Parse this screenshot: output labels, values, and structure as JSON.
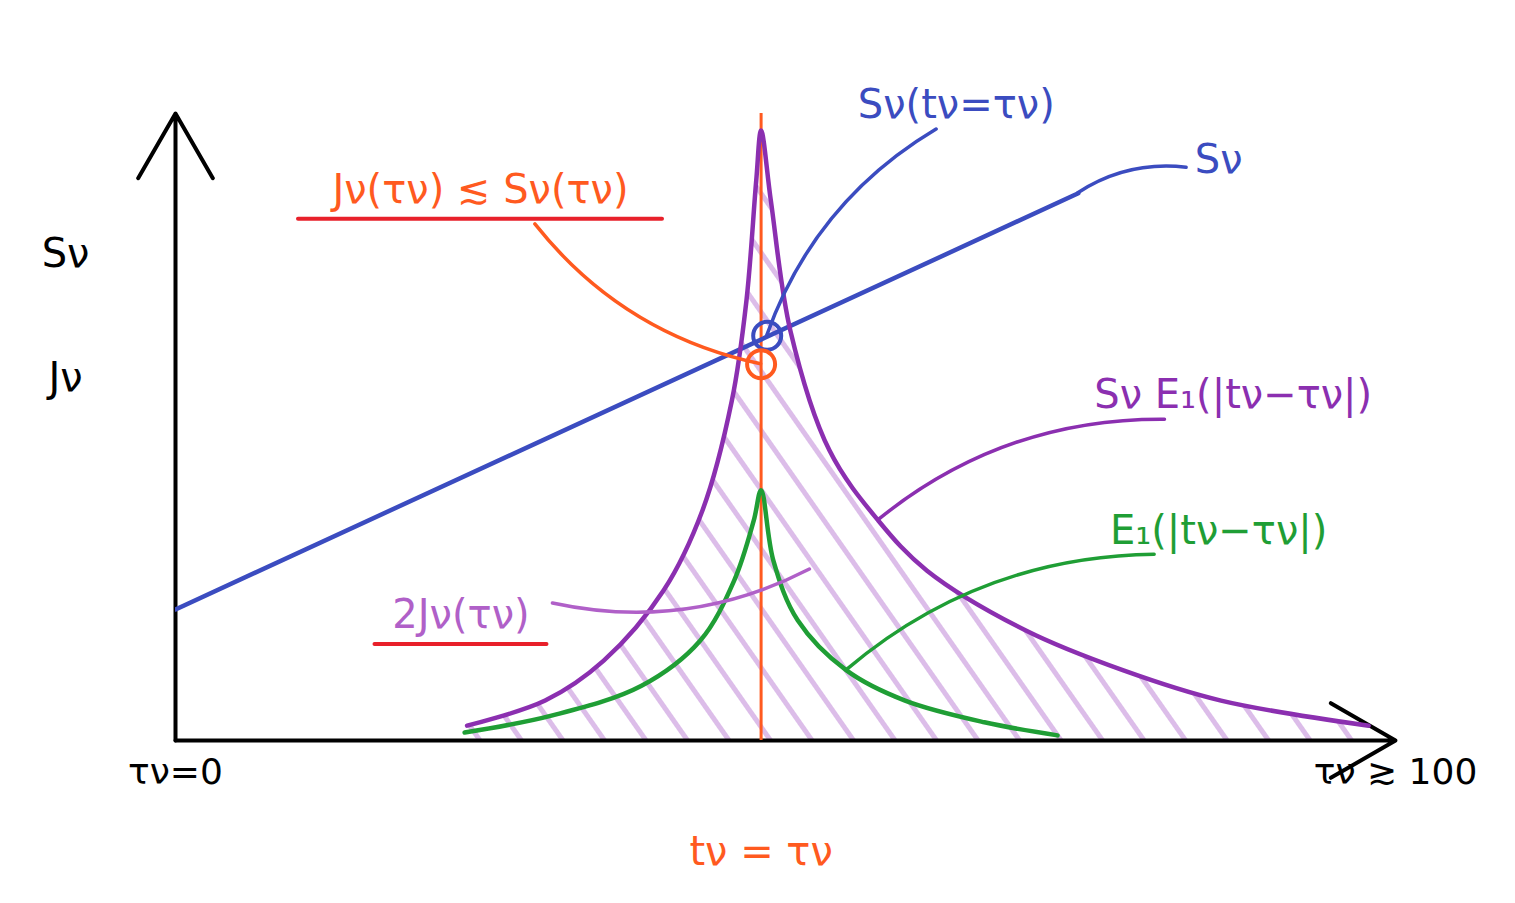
{
  "chart_data": {
    "type": "line",
    "ylabel": "Sν\nJν",
    "xlim": [
      0,
      100
    ],
    "ylim": [
      0,
      110
    ],
    "xticks": [
      {
        "value": 0,
        "label": "τν=0"
      },
      {
        "value": 100,
        "label": "τν ≳ 100"
      }
    ],
    "yticks": [],
    "tick_labels": "x",
    "grid": false,
    "series": [
      {
        "name": "Sν",
        "color": "#3b4cc0",
        "x": [
          0,
          74
        ],
        "values": [
          23,
          96
        ]
      },
      {
        "name": "Sν E₁(|tν−τν|)",
        "type": "area",
        "color": "#8b2fb0",
        "x": [
          23.9,
          30.3,
          35.1,
          40.0,
          43.2,
          45.6,
          46.8,
          47.6,
          48.0,
          48.8,
          50.4,
          53.6,
          57.6,
          61.6,
          69.7,
          77.7,
          85.7,
          97.8
        ],
        "values": [
          2.6,
          7.0,
          14.0,
          26.3,
          40.4,
          59.6,
          77.2,
          98.2,
          107,
          94.7,
          71.9,
          50.9,
          38.6,
          29.8,
          19.3,
          12.3,
          7.0,
          2.6
        ]
      },
      {
        "name": "E₁(|tν−τν|)",
        "color": "#1f9e35",
        "x": [
          23.7,
          30.9,
          38.2,
          43.0,
          45.8,
          47.4,
          48.0,
          49.0,
          51.0,
          55.0,
          59.8,
          66.3,
          72.3
        ],
        "values": [
          1.4,
          4.4,
          9.6,
          17.5,
          28.1,
          38.6,
          43.9,
          31.6,
          21.1,
          12.3,
          7.0,
          3.2,
          0.9
        ]
      }
    ],
    "vlines": [
      {
        "x": 48,
        "label": "tν = τν",
        "color": "#ff5a1f"
      }
    ],
    "points": [
      {
        "x": 48.5,
        "y": 71,
        "color": "#3b4cc0",
        "marker": "circle"
      },
      {
        "x": 48,
        "y": 66,
        "color": "#ff5a1f",
        "marker": "circle"
      }
    ],
    "annotations": [
      {
        "text": "Jν(τν) ≲ Sν(τν)",
        "color": "#ff5a1f",
        "x": 25,
        "y": 96.5,
        "target": [
          48,
          66
        ],
        "marker": "underline"
      },
      {
        "text": "Sν(tν=τν)",
        "color": "#3b4cc0",
        "x": 64,
        "y": 111.4,
        "target": [
          48.5,
          71
        ]
      },
      {
        "text": "Sν",
        "color": "#3b4cc0",
        "x": 85.5,
        "y": 101.8,
        "target": [
          74,
          96
        ]
      },
      {
        "text": "Sν E₁(|tν−τν|)",
        "color": "#8b2fb0",
        "x": 86.7,
        "y": 60.5,
        "target": [
          57.6,
          38.6
        ]
      },
      {
        "text": "E₁(|tν−τν|)",
        "color": "#1f9e35",
        "x": 85.5,
        "y": 36.8,
        "target": [
          55,
          12.3
        ]
      },
      {
        "text": "2Jν(τν)",
        "color": "#b060c8",
        "x": 23.4,
        "y": 21.9,
        "target": [
          52,
          30
        ],
        "marker": "underline"
      }
    ]
  }
}
